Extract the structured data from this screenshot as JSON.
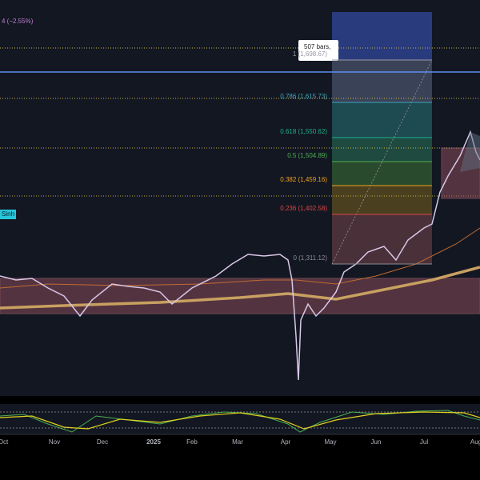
{
  "header": {
    "change": "4 (−2.55%)"
  },
  "tag": "Sinh",
  "measure": {
    "bars": "507 bars,"
  },
  "fib_levels": [
    {
      "label": "1 (1,698.67)",
      "color": "#9a9aa8"
    },
    {
      "label": "0.786 (1,615.73)",
      "color": "#3fa6b8"
    },
    {
      "label": "0.618 (1,550.62)",
      "color": "#1fb08c"
    },
    {
      "label": "0.5 (1,504.89)",
      "color": "#4caf50"
    },
    {
      "label": "0.382 (1,459.16)",
      "color": "#f0a020"
    },
    {
      "label": "0.236 (1,402.58)",
      "color": "#e04545"
    },
    {
      "label": "0 (1,311.12)",
      "color": "#8a8a94"
    }
  ],
  "time_axis": [
    "Oct",
    "Nov",
    "Dec",
    "2025",
    "Feb",
    "Mar",
    "Apr",
    "May",
    "Jun",
    "Jul",
    "Aug"
  ]
}
